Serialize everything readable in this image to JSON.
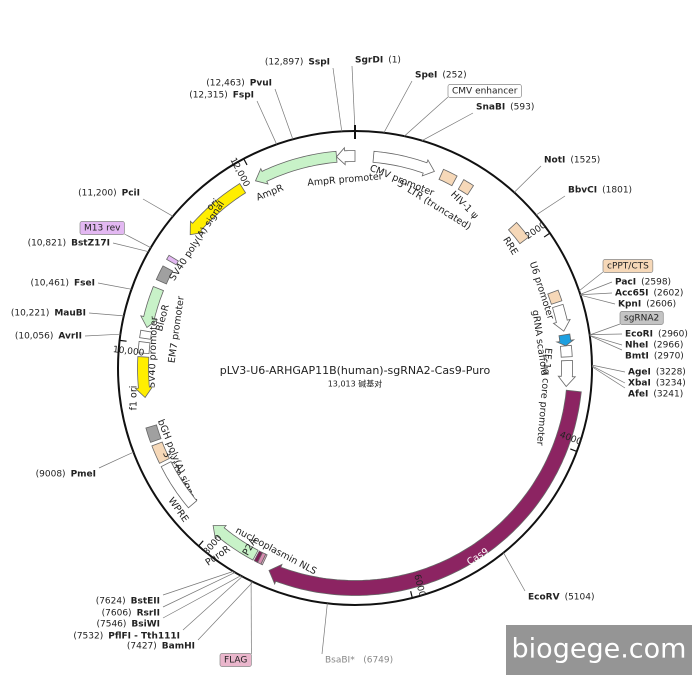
{
  "title": "pLV3-U6-ARHGAP11B(human)-sgRNA2-Cas9-Puro",
  "subtitle": "13,013 碱基对",
  "enzymes": [
    {
      "name": "SspI",
      "position": "(12,897)"
    },
    {
      "name": "SgrDI",
      "position": "(1)"
    },
    {
      "name": "SpeI",
      "position": "(252)"
    },
    {
      "name": "SnaBI",
      "position": "(593)"
    },
    {
      "name": "PvuI",
      "position": "(12,463)"
    },
    {
      "name": "FspI",
      "position": "(12,315)"
    },
    {
      "name": "NotI",
      "position": "(1525)"
    },
    {
      "name": "BbvCI",
      "position": "(1801)"
    },
    {
      "name": "PciI",
      "position": "(11,200)"
    },
    {
      "name": "BstZ17I",
      "position": "(10,821)"
    },
    {
      "name": "FseI",
      "position": "(10,461)"
    },
    {
      "name": "MauBI",
      "position": "(10,221)"
    },
    {
      "name": "AvrII",
      "position": "(10,056)"
    },
    {
      "name": "PacI",
      "position": "(2598)"
    },
    {
      "name": "Acc65I",
      "position": "(2602)"
    },
    {
      "name": "KpnI",
      "position": "(2606)"
    },
    {
      "name": "EcoRI",
      "position": "(2960)"
    },
    {
      "name": "NheI",
      "position": "(2966)"
    },
    {
      "name": "BmtI",
      "position": "(2970)"
    },
    {
      "name": "AgeI",
      "position": "(3228)"
    },
    {
      "name": "XbaI",
      "position": "(3234)"
    },
    {
      "name": "AfeI",
      "position": "(3241)"
    },
    {
      "name": "PmeI",
      "position": "(9008)"
    },
    {
      "name": "EcoRV",
      "position": "(5104)"
    },
    {
      "name": "BsaBI*",
      "position": "(6749)"
    },
    {
      "name": "BstEII",
      "position": "(7624)"
    },
    {
      "name": "RsrII",
      "position": "(7606)"
    },
    {
      "name": "BsiWI",
      "position": "(7546)"
    },
    {
      "name": "PflFI - Tth111I",
      "position": "(7532)"
    },
    {
      "name": "BamHI",
      "position": "(7427)"
    }
  ],
  "boxed_labels": [
    {
      "label": "CMV enhancer",
      "color": "#ffffff"
    },
    {
      "label": "M13 rev",
      "color": "#e3b8f2"
    },
    {
      "label": "cPPT/CTS",
      "color": "#f6d8b8"
    },
    {
      "label": "sgRNA2",
      "color": "#c4c4c4"
    },
    {
      "label": "FLAG",
      "color": "#eab6cc"
    }
  ],
  "features": [
    {
      "label": "AmpR promoter",
      "color": "#ffffff"
    },
    {
      "label": "AmpR",
      "color": "#c8f2c8"
    },
    {
      "label": "CMV promoter",
      "color": "#ffffff"
    },
    {
      "label": "5' LTR (truncated)",
      "color": "#f6d8b8"
    },
    {
      "label": "HIV-1 ψ",
      "color": "#f6d8b8"
    },
    {
      "label": "RRE",
      "color": "#f6d8b8"
    },
    {
      "label": "U6 promoter",
      "color": "#ffffff"
    },
    {
      "label": "gRNA scaffold",
      "color": "#ffffff"
    },
    {
      "label": "EF-1α core promoter",
      "color": "#ffffff"
    },
    {
      "label": "Cas9",
      "color": "#8c2462"
    },
    {
      "label": "ori",
      "color": "#ffee00"
    },
    {
      "label": "SV40 poly(A) signal",
      "color": "#a0a0a0"
    },
    {
      "label": "BleoR",
      "color": "#c8f2c8"
    },
    {
      "label": "EM7 promoter",
      "color": "#ffffff"
    },
    {
      "label": "SV40 promoter",
      "color": "#ffffff"
    },
    {
      "label": "f1 ori",
      "color": "#ffee00"
    },
    {
      "label": "bGH poly(A) signal",
      "color": "#a0a0a0"
    },
    {
      "label": "3' LTR (ΔU3)",
      "color": "#f6d8b8"
    },
    {
      "label": "WPRE",
      "color": "#ffffff"
    },
    {
      "label": "PuroR",
      "color": "#c8f2c8"
    },
    {
      "label": "P2A",
      "color": "#7a1f55"
    },
    {
      "label": "nucleoplasmin NLS",
      "color": "#d68cb0"
    }
  ],
  "ticks": [
    "2000",
    "4000",
    "6000",
    "8000",
    "10,000",
    "12,000"
  ],
  "watermark": "biogege.com"
}
